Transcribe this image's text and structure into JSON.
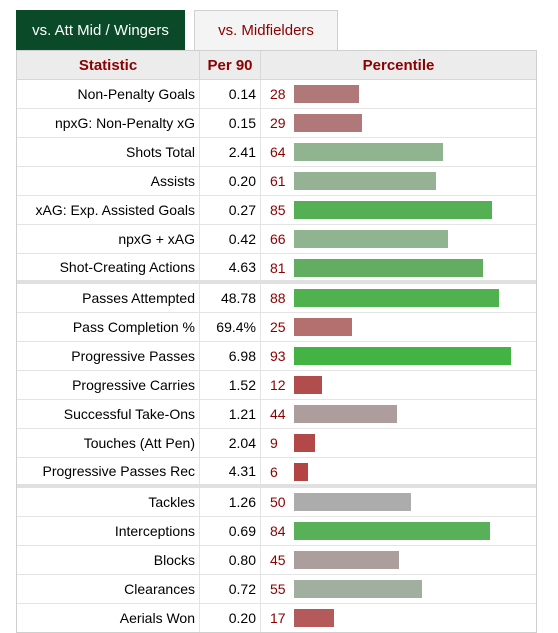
{
  "tabs": [
    {
      "label": "vs. Att Mid / Wingers"
    },
    {
      "label": "vs. Midfielders"
    }
  ],
  "table": {
    "headers": [
      "Statistic",
      "Per 90",
      "Percentile"
    ],
    "rows": [
      {
        "stat": "Non-Penalty Goals",
        "per90": "0.14",
        "percentile": "28",
        "color": "#b07878",
        "group_end": false
      },
      {
        "stat": "npxG: Non-Penalty xG",
        "per90": "0.15",
        "percentile": "29",
        "color": "#b07878",
        "group_end": false
      },
      {
        "stat": "Shots Total",
        "per90": "2.41",
        "percentile": "64",
        "color": "#8fb48f",
        "group_end": false
      },
      {
        "stat": "Assists",
        "per90": "0.20",
        "percentile": "61",
        "color": "#95b295",
        "group_end": false
      },
      {
        "stat": "xAG: Exp. Assisted Goals",
        "per90": "0.27",
        "percentile": "85",
        "color": "#55b055",
        "group_end": false
      },
      {
        "stat": "npxG + xAG",
        "per90": "0.42",
        "percentile": "66",
        "color": "#8fb48f",
        "group_end": false
      },
      {
        "stat": "Shot-Creating Actions",
        "per90": "4.63",
        "percentile": "81",
        "color": "#62ad62",
        "group_end": true
      },
      {
        "stat": "Passes Attempted",
        "per90": "48.78",
        "percentile": "88",
        "color": "#4fb24f",
        "group_end": false
      },
      {
        "stat": "Pass Completion %",
        "per90": "69.4%",
        "percentile": "25",
        "color": "#b46f6f",
        "group_end": false
      },
      {
        "stat": "Progressive Passes",
        "per90": "6.98",
        "percentile": "93",
        "color": "#43b443",
        "group_end": false
      },
      {
        "stat": "Progressive Carries",
        "per90": "1.52",
        "percentile": "12",
        "color": "#b14d4d",
        "group_end": false
      },
      {
        "stat": "Successful Take-Ons",
        "per90": "1.21",
        "percentile": "44",
        "color": "#ae9d9d",
        "group_end": false
      },
      {
        "stat": "Touches (Att Pen)",
        "per90": "2.04",
        "percentile": "9",
        "color": "#b34848",
        "group_end": false
      },
      {
        "stat": "Progressive Passes Rec",
        "per90": "4.31",
        "percentile": "6",
        "color": "#b44343",
        "group_end": true
      },
      {
        "stat": "Tackles",
        "per90": "1.26",
        "percentile": "50",
        "color": "#acacac",
        "group_end": false
      },
      {
        "stat": "Interceptions",
        "per90": "0.69",
        "percentile": "84",
        "color": "#58b058",
        "group_end": false
      },
      {
        "stat": "Blocks",
        "per90": "0.80",
        "percentile": "45",
        "color": "#ad9e9e",
        "group_end": false
      },
      {
        "stat": "Clearances",
        "per90": "0.72",
        "percentile": "55",
        "color": "#a1afa1",
        "group_end": false
      },
      {
        "stat": "Aerials Won",
        "per90": "0.20",
        "percentile": "17",
        "color": "#b45a5a",
        "group_end": false
      }
    ]
  }
}
